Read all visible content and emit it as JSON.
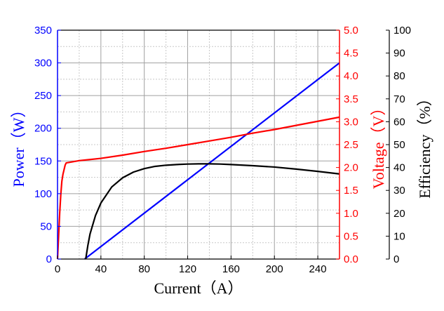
{
  "chart_data": {
    "type": "line",
    "xlabel": "Current（A）",
    "ylabel_left": "Power（W）",
    "ylabel_right": "Voltage（V）",
    "ylabel_right2": "Efficiency（%）",
    "xlim": [
      0,
      260
    ],
    "ylim_left": [
      0,
      350
    ],
    "ylim_right": [
      0,
      5.0
    ],
    "ylim_right2": [
      0,
      100
    ],
    "grid": true,
    "x_ticks": [
      "0",
      "40",
      "80",
      "120",
      "160",
      "200",
      "240"
    ],
    "y_left_ticks": [
      "0",
      "50",
      "100",
      "150",
      "200",
      "250",
      "300",
      "350"
    ],
    "y_right_ticks": [
      "0.0",
      "0.5",
      "1.0",
      "1.5",
      "2.0",
      "2.5",
      "3.0",
      "3.5",
      "4.0",
      "4.5",
      "5.0"
    ],
    "y_right2_ticks": [
      "0",
      "10",
      "20",
      "30",
      "40",
      "50",
      "60",
      "70",
      "80",
      "90",
      "100"
    ],
    "colors": {
      "power": "#0000ff",
      "voltage": "#ff0000",
      "efficiency": "#000000",
      "axis_left": "#0000ff",
      "axis_right": "#ff0000",
      "axis_right2": "#000000"
    },
    "series": [
      {
        "key": "power",
        "axis": "left",
        "x": [
          25,
          260
        ],
        "y": [
          0,
          300
        ]
      },
      {
        "key": "voltage",
        "axis": "right",
        "x": [
          0,
          1,
          2,
          3,
          4,
          5,
          6,
          7,
          8,
          20,
          40,
          60,
          80,
          100,
          120,
          140,
          160,
          180,
          200,
          220,
          240,
          260
        ],
        "y": [
          0.0,
          0.5,
          1.0,
          1.4,
          1.7,
          1.85,
          1.95,
          2.05,
          2.1,
          2.15,
          2.2,
          2.27,
          2.35,
          2.42,
          2.5,
          2.58,
          2.66,
          2.75,
          2.83,
          2.92,
          3.01,
          3.1
        ]
      },
      {
        "key": "efficiency",
        "axis": "right2",
        "x": [
          26,
          28,
          30,
          35,
          40,
          50,
          60,
          70,
          80,
          90,
          100,
          110,
          120,
          130,
          140,
          150,
          160,
          180,
          200,
          220,
          240,
          260
        ],
        "y": [
          0,
          6,
          11,
          19,
          24.5,
          31.5,
          35.5,
          38,
          39.5,
          40.5,
          41,
          41.3,
          41.5,
          41.6,
          41.6,
          41.5,
          41.3,
          40.8,
          40.2,
          39.3,
          38.3,
          37.2
        ]
      }
    ]
  }
}
